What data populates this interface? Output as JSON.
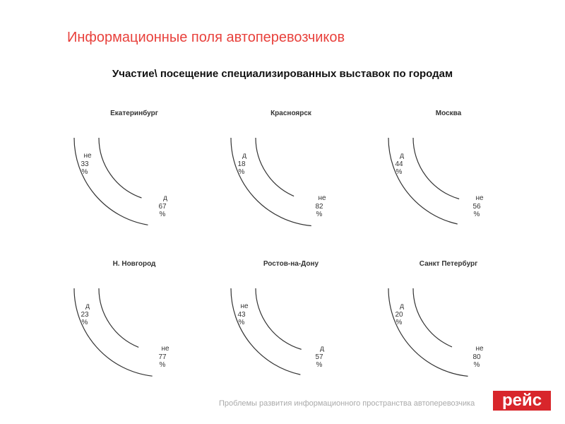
{
  "title": "Информационные поля автоперевозчиков",
  "subtitle": "Участие\\ посещение специализированных выставок по городам",
  "footer": "Проблемы развития информационного пространства автоперевозчика",
  "logo": "рейс",
  "chart_data": [
    {
      "type": "pie",
      "title": "Екатеринбург",
      "categories": [
        "не",
        "д"
      ],
      "values": [
        33,
        67
      ],
      "value_labels": [
        "33 %",
        "67 %"
      ]
    },
    {
      "type": "pie",
      "title": "Красноярск",
      "categories": [
        "д",
        "не"
      ],
      "values": [
        18,
        82
      ],
      "value_labels": [
        "18 %",
        "82 %"
      ]
    },
    {
      "type": "pie",
      "title": "Москва",
      "categories": [
        "д",
        "не"
      ],
      "values": [
        44,
        56
      ],
      "value_labels": [
        "44 %",
        "56 %"
      ]
    },
    {
      "type": "pie",
      "title": "Н. Новгород",
      "categories": [
        "д",
        "не"
      ],
      "values": [
        23,
        77
      ],
      "value_labels": [
        "23 %",
        "77 %"
      ]
    },
    {
      "type": "pie",
      "title": "Ростов-на-Дону",
      "categories": [
        "не",
        "д"
      ],
      "values": [
        43,
        57
      ],
      "value_labels": [
        "43 %",
        "57 %"
      ]
    },
    {
      "type": "pie",
      "title": "Санкт Петербург",
      "categories": [
        "д",
        "не"
      ],
      "values": [
        20,
        80
      ],
      "value_labels": [
        "20 %",
        "80 %"
      ]
    }
  ]
}
